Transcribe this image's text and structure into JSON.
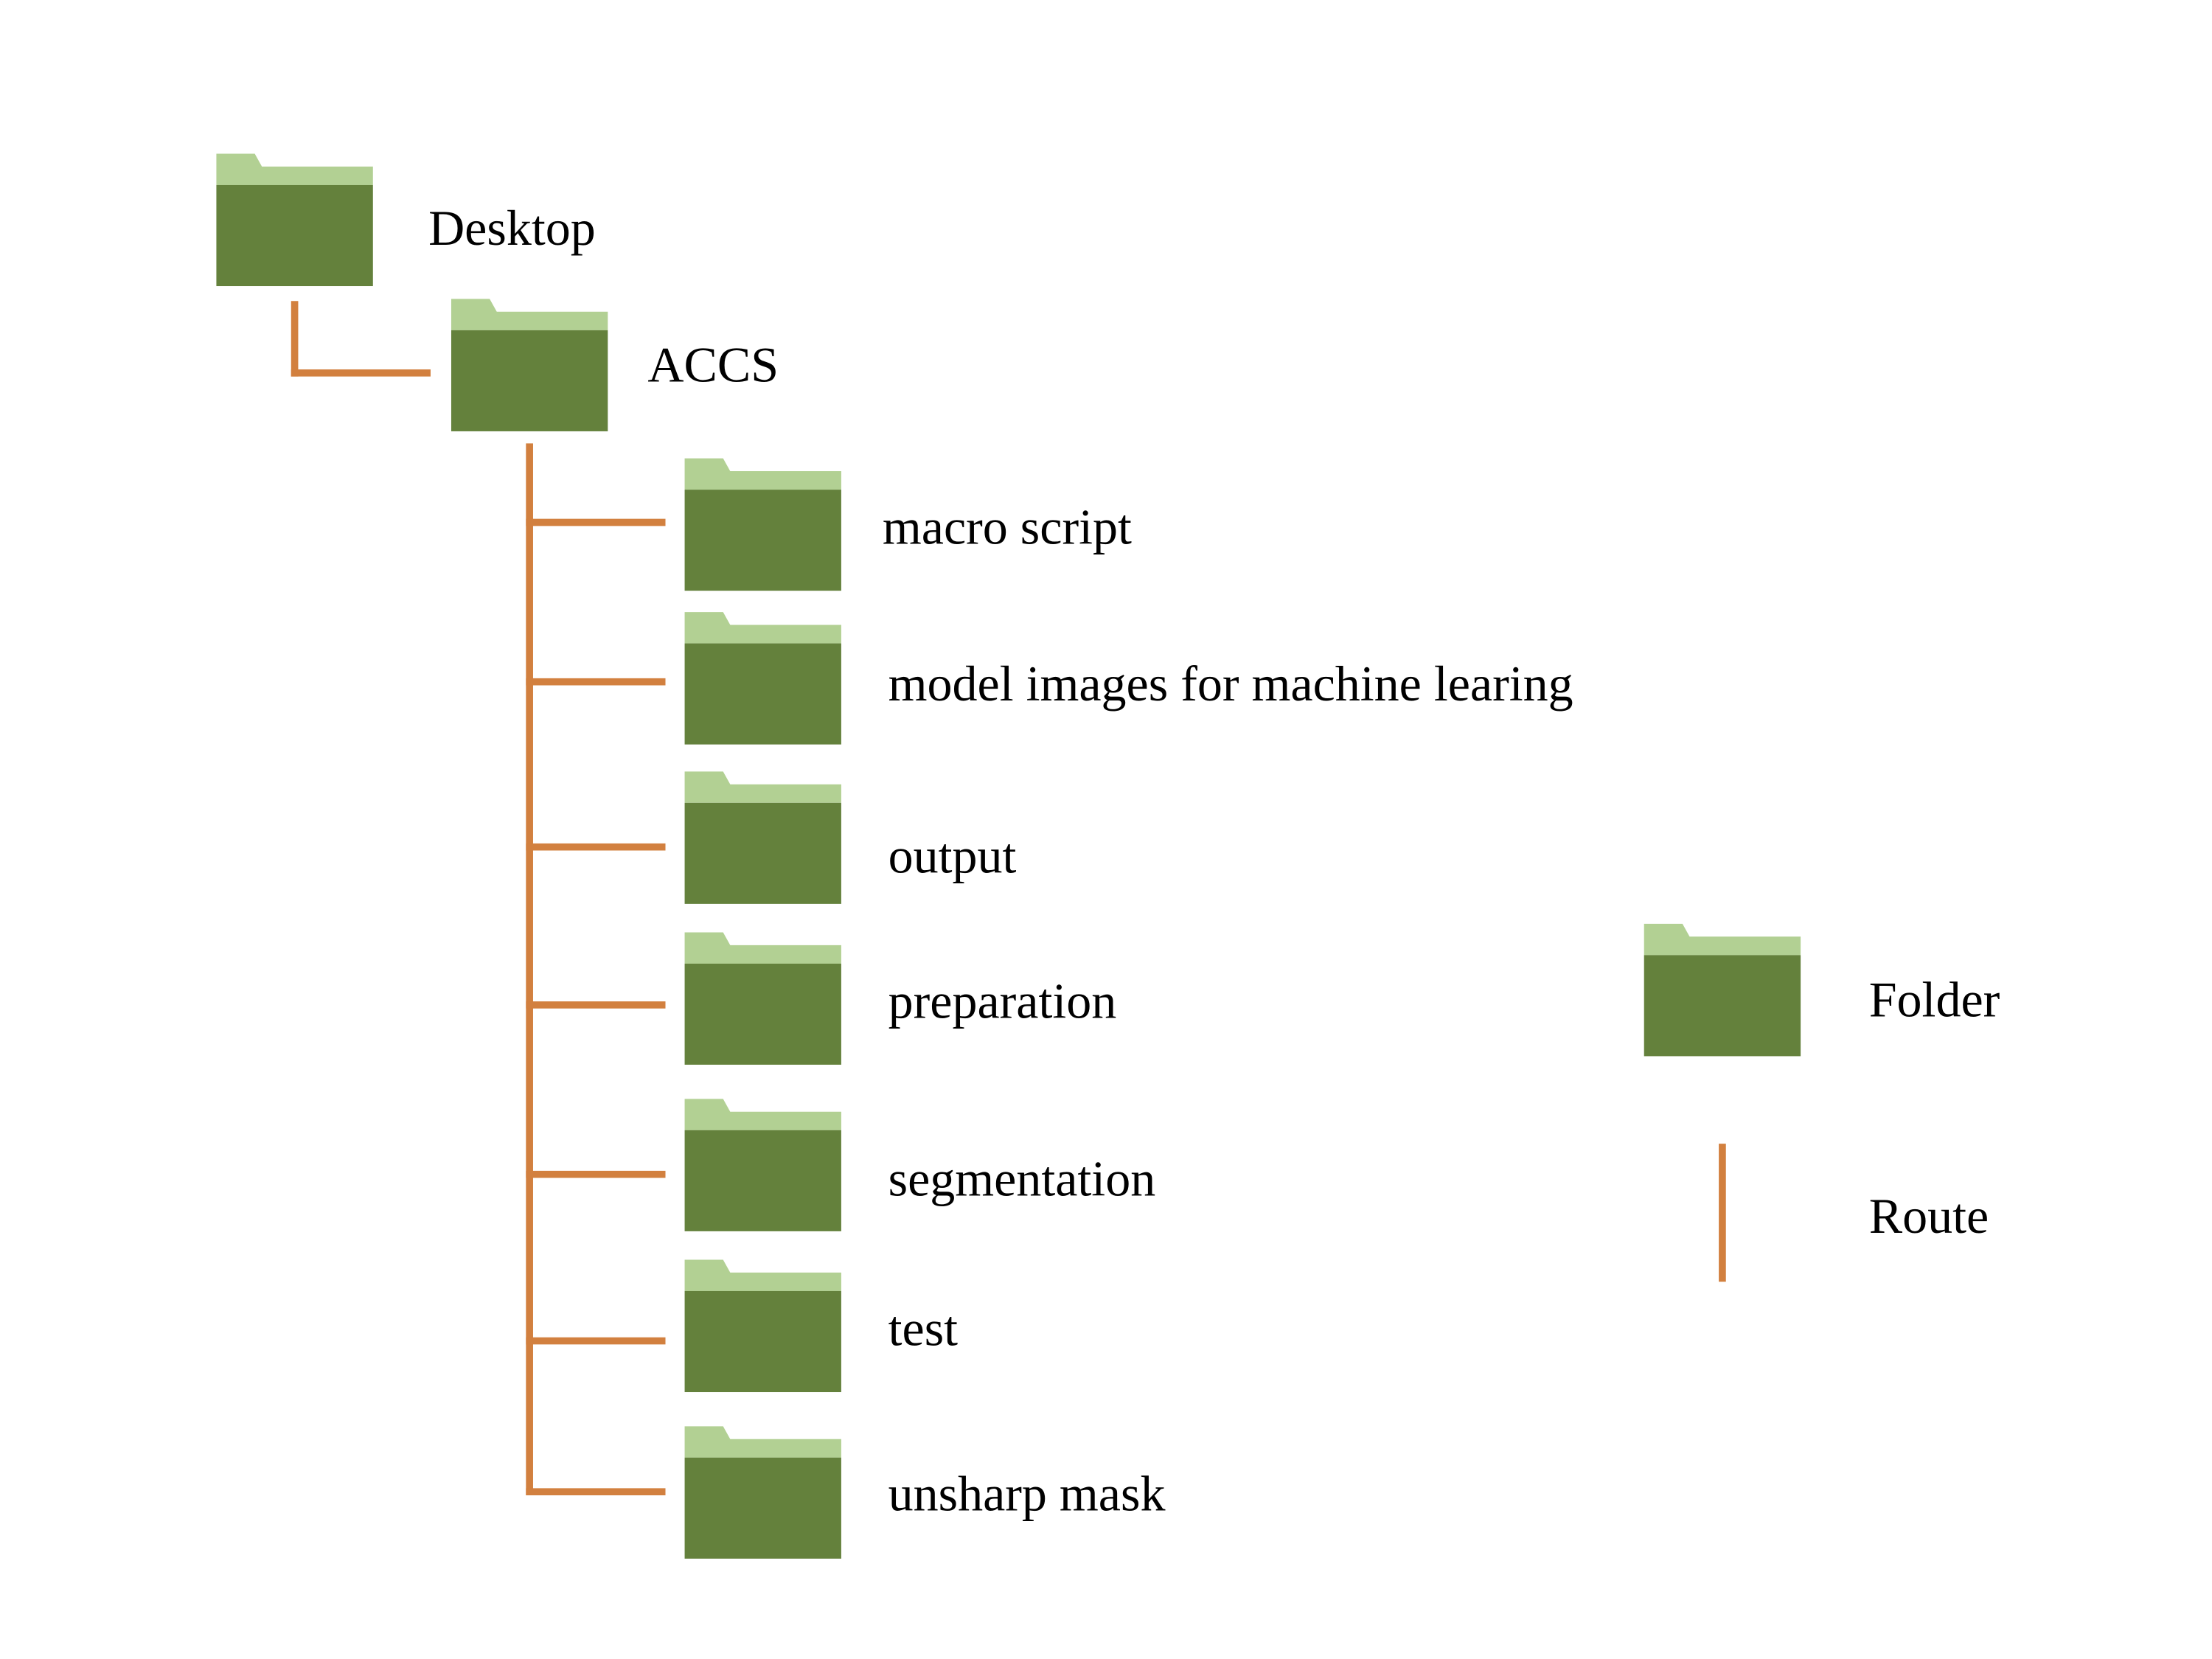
{
  "colors": {
    "folder_body": "#64813c",
    "folder_tab": "#b2d093",
    "route": "#d2803f",
    "text": "#000000",
    "background": "#ffffff"
  },
  "tree": {
    "root": {
      "label": "Desktop",
      "icon": "folder-icon"
    },
    "child": {
      "label": "ACCS",
      "icon": "folder-icon"
    },
    "subfolders": [
      {
        "label": "macro script",
        "icon": "folder-icon"
      },
      {
        "label": "model images for machine learing",
        "icon": "folder-icon"
      },
      {
        "label": "output",
        "icon": "folder-icon"
      },
      {
        "label": "preparation",
        "icon": "folder-icon"
      },
      {
        "label": "segmentation",
        "icon": "folder-icon"
      },
      {
        "label": "test",
        "icon": "folder-icon"
      },
      {
        "label": "unsharp mask",
        "icon": "folder-icon"
      }
    ]
  },
  "legend": {
    "items": [
      {
        "label": "Folder",
        "icon": "folder-icon"
      },
      {
        "label": "Route",
        "icon": "route-line-icon"
      }
    ]
  }
}
